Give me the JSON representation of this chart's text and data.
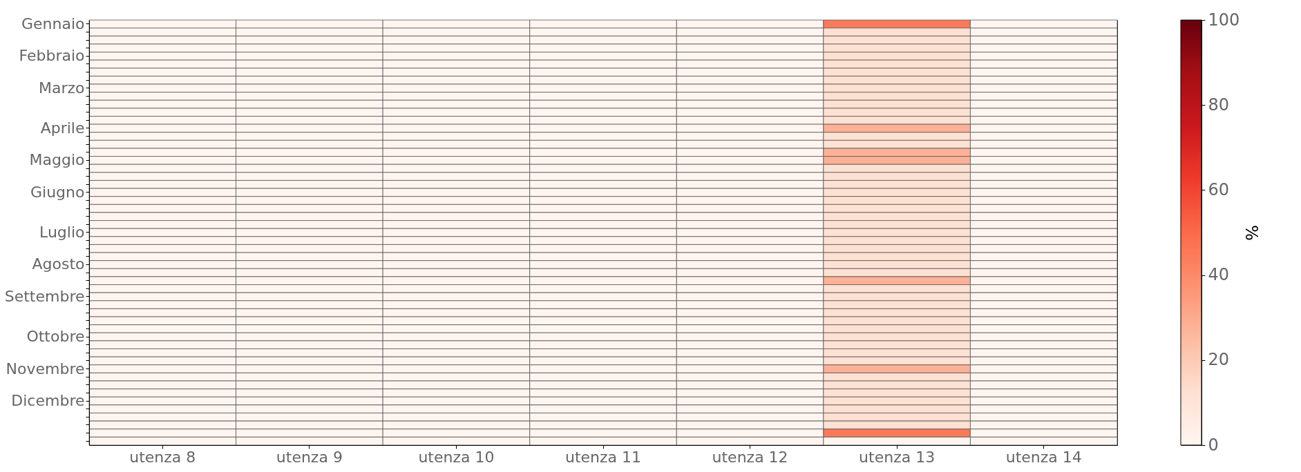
{
  "chart_data": {
    "type": "heatmap",
    "categories": [
      "utenza 8",
      "utenza 9",
      "utenza 10",
      "utenza 11",
      "utenza 12",
      "utenza 13",
      "utenza 14"
    ],
    "y_categories": [
      "Gennaio",
      null,
      null,
      null,
      "Febbraio",
      null,
      null,
      null,
      "Marzo",
      null,
      null,
      null,
      null,
      "Aprile",
      null,
      null,
      null,
      "Maggio",
      null,
      null,
      null,
      "Giugno",
      null,
      null,
      null,
      null,
      "Luglio",
      null,
      null,
      null,
      "Agosto",
      null,
      null,
      null,
      "Settembre",
      null,
      null,
      null,
      null,
      "Ottobre",
      null,
      null,
      null,
      "Novembre",
      null,
      null,
      null,
      "Dicembre",
      null,
      null,
      null,
      null,
      null
    ],
    "cells": [
      [
        0,
        0,
        0,
        0,
        0,
        45,
        0
      ],
      [
        0,
        0,
        0,
        0,
        0,
        12,
        0
      ],
      [
        0,
        0,
        0,
        0,
        0,
        12,
        0
      ],
      [
        0,
        0,
        0,
        0,
        0,
        12,
        0
      ],
      [
        0,
        0,
        0,
        0,
        0,
        12,
        0
      ],
      [
        0,
        0,
        0,
        0,
        0,
        12,
        0
      ],
      [
        0,
        0,
        0,
        0,
        0,
        12,
        0
      ],
      [
        0,
        0,
        0,
        0,
        0,
        12,
        0
      ],
      [
        0,
        0,
        0,
        0,
        0,
        12,
        0
      ],
      [
        0,
        0,
        0,
        0,
        0,
        12,
        0
      ],
      [
        0,
        0,
        0,
        0,
        0,
        12,
        0
      ],
      [
        0,
        0,
        0,
        0,
        0,
        12,
        0
      ],
      [
        0,
        0,
        0,
        0,
        0,
        12,
        0
      ],
      [
        0,
        0,
        0,
        0,
        0,
        28,
        0
      ],
      [
        0,
        0,
        0,
        0,
        0,
        12,
        0
      ],
      [
        0,
        0,
        0,
        0,
        0,
        12,
        0
      ],
      [
        0,
        0,
        0,
        0,
        0,
        28,
        0
      ],
      [
        0,
        0,
        0,
        0,
        0,
        28,
        0
      ],
      [
        0,
        0,
        0,
        0,
        0,
        12,
        0
      ],
      [
        0,
        0,
        0,
        0,
        0,
        12,
        0
      ],
      [
        0,
        0,
        0,
        0,
        0,
        12,
        0
      ],
      [
        0,
        0,
        0,
        0,
        0,
        12,
        0
      ],
      [
        0,
        0,
        0,
        0,
        0,
        12,
        0
      ],
      [
        0,
        0,
        0,
        0,
        0,
        12,
        0
      ],
      [
        0,
        0,
        0,
        0,
        0,
        12,
        0
      ],
      [
        0,
        0,
        0,
        0,
        0,
        12,
        0
      ],
      [
        0,
        0,
        0,
        0,
        0,
        12,
        0
      ],
      [
        0,
        0,
        0,
        0,
        0,
        12,
        0
      ],
      [
        0,
        0,
        0,
        0,
        0,
        12,
        0
      ],
      [
        0,
        0,
        0,
        0,
        0,
        12,
        0
      ],
      [
        0,
        0,
        0,
        0,
        0,
        12,
        0
      ],
      [
        0,
        0,
        0,
        0,
        0,
        12,
        0
      ],
      [
        0,
        0,
        0,
        0,
        0,
        28,
        0
      ],
      [
        0,
        0,
        0,
        0,
        0,
        12,
        0
      ],
      [
        0,
        0,
        0,
        0,
        0,
        12,
        0
      ],
      [
        0,
        0,
        0,
        0,
        0,
        12,
        0
      ],
      [
        0,
        0,
        0,
        0,
        0,
        12,
        0
      ],
      [
        0,
        0,
        0,
        0,
        0,
        12,
        0
      ],
      [
        0,
        0,
        0,
        0,
        0,
        12,
        0
      ],
      [
        0,
        0,
        0,
        0,
        0,
        12,
        0
      ],
      [
        0,
        0,
        0,
        0,
        0,
        12,
        0
      ],
      [
        0,
        0,
        0,
        0,
        0,
        12,
        0
      ],
      [
        0,
        0,
        0,
        0,
        0,
        12,
        0
      ],
      [
        0,
        0,
        0,
        0,
        0,
        28,
        0
      ],
      [
        0,
        0,
        0,
        0,
        0,
        12,
        0
      ],
      [
        0,
        0,
        0,
        0,
        0,
        12,
        0
      ],
      [
        0,
        0,
        0,
        0,
        0,
        12,
        0
      ],
      [
        0,
        0,
        0,
        0,
        0,
        12,
        0
      ],
      [
        0,
        0,
        0,
        0,
        0,
        12,
        0
      ],
      [
        0,
        0,
        0,
        0,
        0,
        12,
        0
      ],
      [
        0,
        0,
        0,
        0,
        0,
        12,
        0
      ],
      [
        0,
        0,
        0,
        0,
        0,
        45,
        0
      ],
      [
        0,
        0,
        0,
        0,
        0,
        0,
        0
      ]
    ],
    "clim": [
      0,
      100
    ],
    "cticks": [
      0,
      20,
      40,
      60,
      80,
      100
    ],
    "clabel": "%"
  }
}
